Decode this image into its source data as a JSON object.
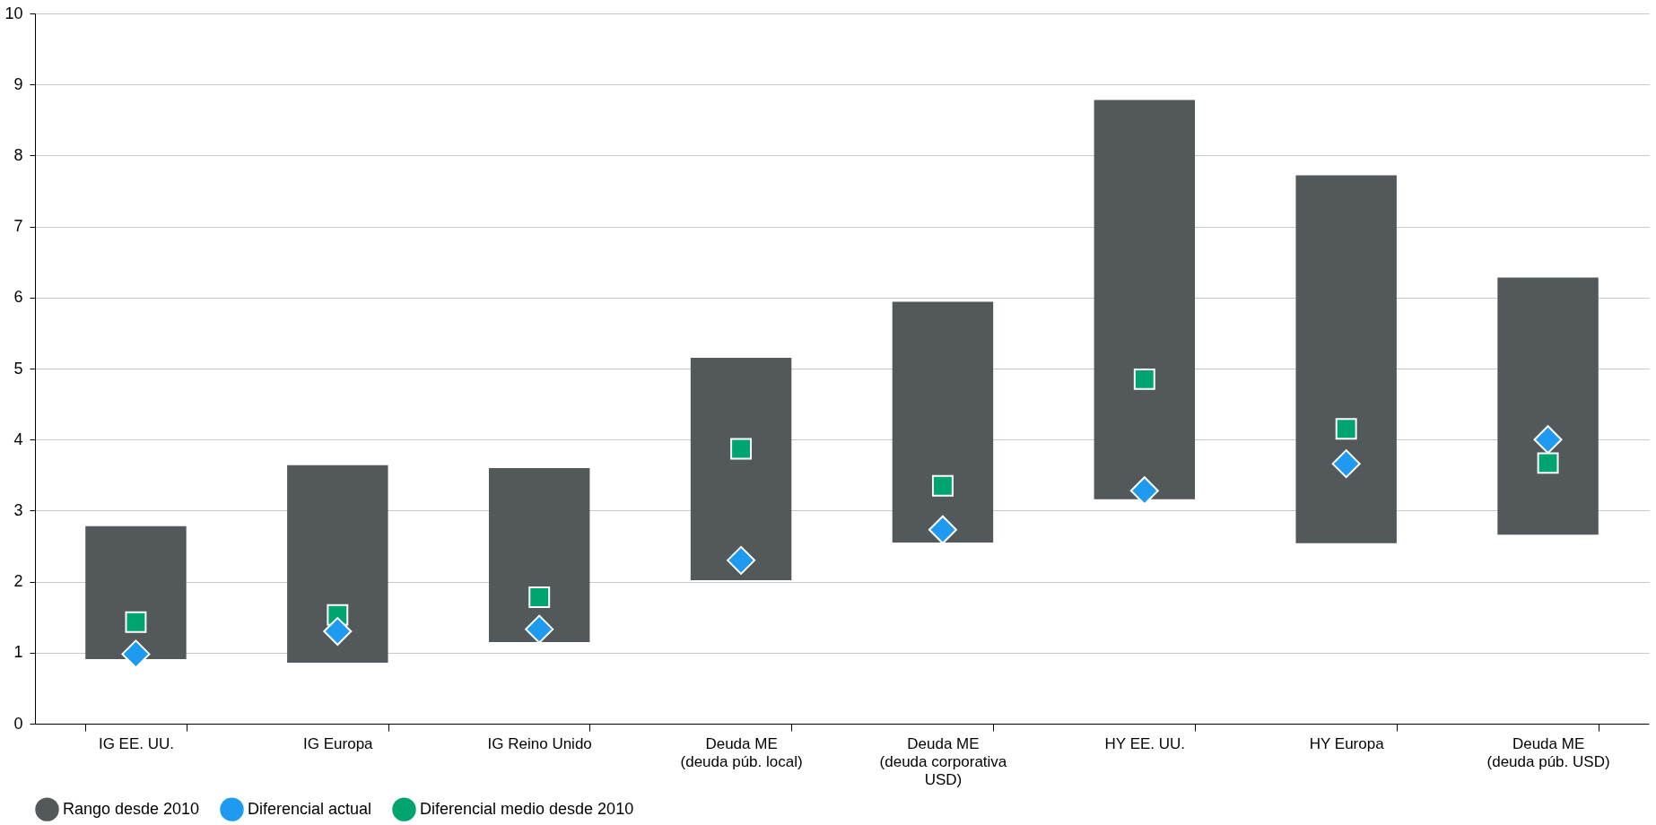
{
  "chart_data": {
    "type": "bar",
    "categories": [
      "IG EE. UU.",
      "IG Europa",
      "IG Reino Unido",
      "Deuda ME (deuda púb. local)",
      "Deuda ME (deuda corporativa USD)",
      "HY EE. UU.",
      "HY Europa",
      "Deuda ME (deuda púb. USD)"
    ],
    "series": [
      {
        "name": "Rango desde 2010",
        "color": "#53585a",
        "base": [
          0.91,
          0.86,
          1.15,
          2.02,
          2.55,
          3.16,
          2.54,
          2.66
        ],
        "values": [
          1.87,
          2.78,
          2.45,
          3.13,
          3.39,
          5.62,
          5.18,
          3.62
        ]
      },
      {
        "name": "Diferencial actual",
        "type": "scatter",
        "marker": "diamond",
        "color": "#1e9bf0",
        "values": [
          0.98,
          1.3,
          1.33,
          2.3,
          2.73,
          3.28,
          3.66,
          4.0
        ]
      },
      {
        "name": "Diferencial medio desde 2010",
        "type": "scatter",
        "marker": "square",
        "color": "#00a46f",
        "values": [
          1.43,
          1.53,
          1.78,
          3.87,
          3.35,
          4.85,
          4.15,
          3.67
        ]
      }
    ],
    "ylim": [
      0,
      10
    ],
    "yticks": [
      0,
      1,
      2,
      3,
      4,
      5,
      6,
      7,
      8,
      9,
      10
    ],
    "grid": "y",
    "legend": "bottom left"
  }
}
